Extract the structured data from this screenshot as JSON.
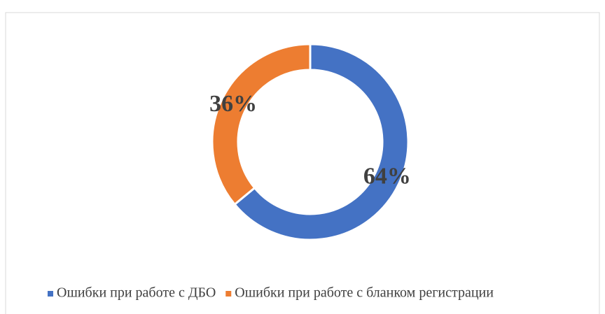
{
  "chart_data": {
    "type": "pie",
    "donut": true,
    "categories": [
      "Ошибки при работе с ДБО",
      "Ошибки при работе с бланком регистрации"
    ],
    "values": [
      64,
      36
    ],
    "value_labels": [
      "64%",
      "36%"
    ],
    "colors": [
      "#4472c4",
      "#ed7d31"
    ],
    "legend": "bottom"
  }
}
